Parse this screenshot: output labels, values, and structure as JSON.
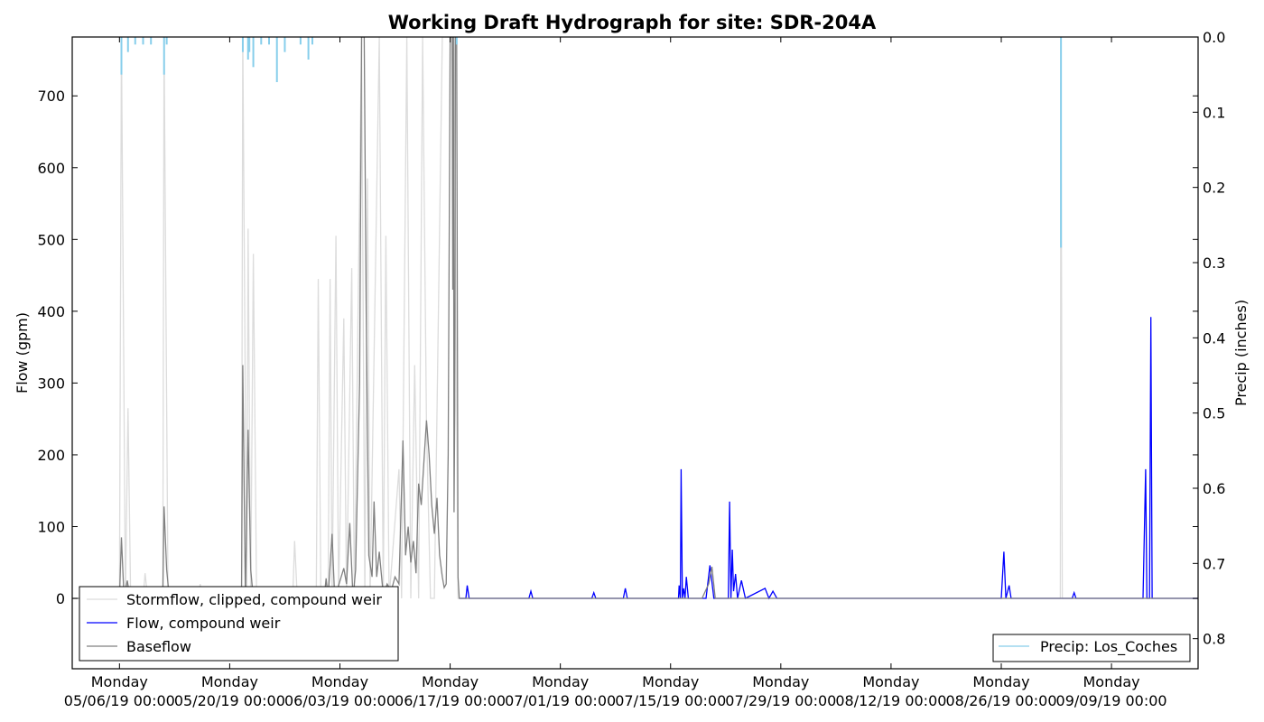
{
  "chart_data": {
    "type": "line",
    "title": "Working Draft Hydrograph for site: SDR-204A",
    "ylabel": "Flow (gpm)",
    "y2label": "Precip (inches)",
    "ylim": [
      -98,
      782
    ],
    "y2lim": [
      0.84,
      0.0
    ],
    "y2_inverted": true,
    "yticks": [
      0,
      100,
      200,
      300,
      400,
      500,
      600,
      700
    ],
    "y2ticks": [
      0.0,
      0.1,
      0.2,
      0.3,
      0.4,
      0.5,
      0.6,
      0.7,
      0.8
    ],
    "xlim": [
      "2019-04-30",
      "2019-09-20"
    ],
    "xticks": [
      {
        "date": "2019-05-06",
        "day": "Monday",
        "label": "05/06/19 00:00"
      },
      {
        "date": "2019-05-20",
        "day": "Monday",
        "label": "05/20/19 00:00"
      },
      {
        "date": "2019-06-03",
        "day": "Monday",
        "label": "06/03/19 00:00"
      },
      {
        "date": "2019-06-17",
        "day": "Monday",
        "label": "06/17/19 00:00"
      },
      {
        "date": "2019-07-01",
        "day": "Monday",
        "label": "07/01/19 00:00"
      },
      {
        "date": "2019-07-15",
        "day": "Monday",
        "label": "07/15/19 00:00"
      },
      {
        "date": "2019-07-29",
        "day": "Monday",
        "label": "07/29/19 00:00"
      },
      {
        "date": "2019-08-12",
        "day": "Monday",
        "label": "08/12/19 00:00"
      },
      {
        "date": "2019-08-26",
        "day": "Monday",
        "label": "08/26/19 00:00"
      },
      {
        "date": "2019-09-09",
        "day": "Monday",
        "label": "09/09/19 00:00"
      }
    ],
    "grid": false,
    "legend_placement": "lower-left",
    "legend2_placement": "lower-right",
    "series": [
      {
        "name": "Stormflow, clipped, compound weir",
        "color": "#dcdcdc",
        "axis": "left",
        "points": [
          [
            "2019-04-30",
            0
          ],
          [
            "2019-05-06",
            0
          ],
          [
            "2019-05-06T06:00",
            782
          ],
          [
            "2019-05-06T18:00",
            0
          ],
          [
            "2019-05-07T02:00",
            265
          ],
          [
            "2019-05-07T10:00",
            0
          ],
          [
            "2019-05-09",
            0
          ],
          [
            "2019-05-09T06:00",
            35
          ],
          [
            "2019-05-09T14:00",
            0
          ],
          [
            "2019-05-11T12:00",
            0
          ],
          [
            "2019-05-11T16:00",
            782
          ],
          [
            "2019-05-12T04:00",
            0
          ],
          [
            "2019-05-16",
            0
          ],
          [
            "2019-05-16T06:00",
            20
          ],
          [
            "2019-05-16T14:00",
            0
          ],
          [
            "2019-05-21T12:00",
            0
          ],
          [
            "2019-05-21T16:00",
            782
          ],
          [
            "2019-05-22T04:00",
            0
          ],
          [
            "2019-05-22T08:00",
            515
          ],
          [
            "2019-05-22T16:00",
            0
          ],
          [
            "2019-05-23",
            480
          ],
          [
            "2019-05-23T10:00",
            0
          ],
          [
            "2019-05-28",
            0
          ],
          [
            "2019-05-28T06:00",
            80
          ],
          [
            "2019-05-28T14:00",
            0
          ],
          [
            "2019-05-31",
            0
          ],
          [
            "2019-05-31T06:00",
            445
          ],
          [
            "2019-05-31T14:00",
            0
          ],
          [
            "2019-06-01T12:00",
            0
          ],
          [
            "2019-06-01T18:00",
            445
          ],
          [
            "2019-06-02",
            0
          ],
          [
            "2019-06-02T12:00",
            505
          ],
          [
            "2019-06-02T20:00",
            0
          ],
          [
            "2019-06-03T12:00",
            390
          ],
          [
            "2019-06-03T20:00",
            0
          ],
          [
            "2019-06-04T12:00",
            460
          ],
          [
            "2019-06-04T20:00",
            0
          ],
          [
            "2019-06-05T18:00",
            782
          ],
          [
            "2019-06-06T04:00",
            0
          ],
          [
            "2019-06-06T12:00",
            585
          ],
          [
            "2019-06-06T20:00",
            0
          ],
          [
            "2019-06-08",
            782
          ],
          [
            "2019-06-08T12:00",
            0
          ],
          [
            "2019-06-08T20:00",
            505
          ],
          [
            "2019-06-09T06:00",
            0
          ],
          [
            "2019-06-10T12:00",
            180
          ],
          [
            "2019-06-10T20:00",
            0
          ],
          [
            "2019-06-11T12:00",
            782
          ],
          [
            "2019-06-12",
            0
          ],
          [
            "2019-06-12T12:00",
            325
          ],
          [
            "2019-06-13",
            0
          ],
          [
            "2019-06-13T12:00",
            782
          ],
          [
            "2019-06-14",
            240
          ],
          [
            "2019-06-14T12:00",
            0
          ],
          [
            "2019-06-15",
            0
          ],
          [
            "2019-06-16",
            782
          ],
          [
            "2019-06-16T12:00",
            782
          ],
          [
            "2019-06-17",
            782
          ],
          [
            "2019-06-17T12:00",
            782
          ],
          [
            "2019-06-18",
            0
          ],
          [
            "2019-09-02T12:00",
            0
          ],
          [
            "2019-09-02T14:00",
            782
          ],
          [
            "2019-09-02T18:00",
            0
          ],
          [
            "2019-09-20",
            0
          ]
        ]
      },
      {
        "name": "Flow, compound weir",
        "color": "#0000ff",
        "axis": "left",
        "points": [
          [
            "2019-06-18T06:00",
            0
          ],
          [
            "2019-06-19",
            0
          ],
          [
            "2019-06-19T04:00",
            18
          ],
          [
            "2019-06-19T10:00",
            0
          ],
          [
            "2019-06-27",
            0
          ],
          [
            "2019-06-27T06:00",
            10
          ],
          [
            "2019-06-27T12:00",
            0
          ],
          [
            "2019-07-05",
            0
          ],
          [
            "2019-07-05T06:00",
            8
          ],
          [
            "2019-07-05T12:00",
            0
          ],
          [
            "2019-07-09",
            0
          ],
          [
            "2019-07-09T06:00",
            14
          ],
          [
            "2019-07-09T12:00",
            0
          ],
          [
            "2019-07-16",
            0
          ],
          [
            "2019-07-16T02:00",
            18
          ],
          [
            "2019-07-16T06:00",
            0
          ],
          [
            "2019-07-16T08:00",
            180
          ],
          [
            "2019-07-16T12:00",
            0
          ],
          [
            "2019-07-16T16:00",
            14
          ],
          [
            "2019-07-16T20:00",
            0
          ],
          [
            "2019-07-17",
            30
          ],
          [
            "2019-07-17T06:00",
            0
          ],
          [
            "2019-07-19T12:00",
            0
          ],
          [
            "2019-07-20",
            46
          ],
          [
            "2019-07-20T12:00",
            0
          ],
          [
            "2019-07-22T08:00",
            0
          ],
          [
            "2019-07-22T12:00",
            135
          ],
          [
            "2019-07-22T16:00",
            0
          ],
          [
            "2019-07-22T20:00",
            68
          ],
          [
            "2019-07-23",
            10
          ],
          [
            "2019-07-23T06:00",
            34
          ],
          [
            "2019-07-23T12:00",
            0
          ],
          [
            "2019-07-24",
            25
          ],
          [
            "2019-07-24T12:00",
            0
          ],
          [
            "2019-07-27",
            14
          ],
          [
            "2019-07-27T12:00",
            0
          ],
          [
            "2019-07-28",
            10
          ],
          [
            "2019-07-28T12:00",
            0
          ],
          [
            "2019-08-26",
            0
          ],
          [
            "2019-08-26T08:00",
            65
          ],
          [
            "2019-08-26T14:00",
            0
          ],
          [
            "2019-08-27",
            18
          ],
          [
            "2019-08-27T06:00",
            0
          ],
          [
            "2019-09-04",
            0
          ],
          [
            "2019-09-04T06:00",
            8
          ],
          [
            "2019-09-04T12:00",
            0
          ],
          [
            "2019-09-13",
            0
          ],
          [
            "2019-09-13T08:00",
            180
          ],
          [
            "2019-09-13T12:00",
            0
          ],
          [
            "2019-09-13T20:00",
            0
          ],
          [
            "2019-09-14",
            392
          ],
          [
            "2019-09-14T04:00",
            0
          ],
          [
            "2019-09-20",
            0
          ]
        ]
      },
      {
        "name": "Baseflow",
        "color": "#808080",
        "axis": "left",
        "points": [
          [
            "2019-04-30",
            0
          ],
          [
            "2019-05-06",
            0
          ],
          [
            "2019-05-06T06:00",
            85
          ],
          [
            "2019-05-06T14:00",
            0
          ],
          [
            "2019-05-07",
            25
          ],
          [
            "2019-05-07T08:00",
            0
          ],
          [
            "2019-05-11T12:00",
            0
          ],
          [
            "2019-05-11T16:00",
            128
          ],
          [
            "2019-05-12",
            40
          ],
          [
            "2019-05-12T08:00",
            0
          ],
          [
            "2019-05-21T12:00",
            0
          ],
          [
            "2019-05-21T16:00",
            325
          ],
          [
            "2019-05-22",
            0
          ],
          [
            "2019-05-22T08:00",
            235
          ],
          [
            "2019-05-22T16:00",
            40
          ],
          [
            "2019-05-23",
            0
          ],
          [
            "2019-06-01",
            0
          ],
          [
            "2019-06-01T06:00",
            28
          ],
          [
            "2019-06-01T12:00",
            0
          ],
          [
            "2019-06-02",
            90
          ],
          [
            "2019-06-02T08:00",
            0
          ],
          [
            "2019-06-03T12:00",
            42
          ],
          [
            "2019-06-03T20:00",
            20
          ],
          [
            "2019-06-04T06:00",
            105
          ],
          [
            "2019-06-04T16:00",
            0
          ],
          [
            "2019-06-05",
            40
          ],
          [
            "2019-06-05T12:00",
            300
          ],
          [
            "2019-06-05T18:00",
            782
          ],
          [
            "2019-06-06T02:00",
            782
          ],
          [
            "2019-06-06T08:00",
            400
          ],
          [
            "2019-06-06T16:00",
            60
          ],
          [
            "2019-06-07T02:00",
            30
          ],
          [
            "2019-06-07T08:00",
            135
          ],
          [
            "2019-06-07T16:00",
            30
          ],
          [
            "2019-06-08",
            65
          ],
          [
            "2019-06-08T12:00",
            5
          ],
          [
            "2019-06-09",
            20
          ],
          [
            "2019-06-09T12:00",
            10
          ],
          [
            "2019-06-10",
            30
          ],
          [
            "2019-06-10T12:00",
            20
          ],
          [
            "2019-06-11",
            220
          ],
          [
            "2019-06-11T08:00",
            60
          ],
          [
            "2019-06-11T16:00",
            100
          ],
          [
            "2019-06-12",
            50
          ],
          [
            "2019-06-12T08:00",
            80
          ],
          [
            "2019-06-12T16:00",
            35
          ],
          [
            "2019-06-13",
            160
          ],
          [
            "2019-06-13T08:00",
            130
          ],
          [
            "2019-06-13T16:00",
            190
          ],
          [
            "2019-06-14",
            248
          ],
          [
            "2019-06-14T08:00",
            200
          ],
          [
            "2019-06-14T16:00",
            130
          ],
          [
            "2019-06-15",
            90
          ],
          [
            "2019-06-15T08:00",
            140
          ],
          [
            "2019-06-15T16:00",
            60
          ],
          [
            "2019-06-16",
            30
          ],
          [
            "2019-06-16T06:00",
            15
          ],
          [
            "2019-06-16T12:00",
            20
          ],
          [
            "2019-06-16T18:00",
            200
          ],
          [
            "2019-06-17",
            782
          ],
          [
            "2019-06-17T06:00",
            782
          ],
          [
            "2019-06-17T08:00",
            430
          ],
          [
            "2019-06-17T10:00",
            782
          ],
          [
            "2019-06-17T12:00",
            120
          ],
          [
            "2019-06-17T14:00",
            265
          ],
          [
            "2019-06-17T16:00",
            782
          ],
          [
            "2019-06-17T20:00",
            782
          ],
          [
            "2019-06-18",
            30
          ],
          [
            "2019-06-18T04:00",
            0
          ],
          [
            "2019-07-19",
            0
          ],
          [
            "2019-07-19T20:00",
            20
          ],
          [
            "2019-07-20T06:00",
            44
          ],
          [
            "2019-07-20T16:00",
            0
          ],
          [
            "2019-09-20",
            0
          ]
        ]
      },
      {
        "name": "Precip: Los_Coches",
        "color": "#87ceeb",
        "axis": "right",
        "points": [
          [
            "2019-05-06T06:00",
            0.05
          ],
          [
            "2019-05-07T02:00",
            0.02
          ],
          [
            "2019-05-08",
            0.01
          ],
          [
            "2019-05-09",
            0.01
          ],
          [
            "2019-05-10",
            0.01
          ],
          [
            "2019-05-11T16:00",
            0.05
          ],
          [
            "2019-05-12",
            0.01
          ],
          [
            "2019-05-21T16:00",
            0.02
          ],
          [
            "2019-05-22T08:00",
            0.03
          ],
          [
            "2019-05-22T12:00",
            0.02
          ],
          [
            "2019-05-23",
            0.04
          ],
          [
            "2019-05-24",
            0.01
          ],
          [
            "2019-05-25",
            0.01
          ],
          [
            "2019-05-26",
            0.06
          ],
          [
            "2019-05-27",
            0.02
          ],
          [
            "2019-05-29",
            0.01
          ],
          [
            "2019-05-30",
            0.03
          ],
          [
            "2019-05-30T12:00",
            0.01
          ],
          [
            "2019-06-17T20:00",
            0.01
          ],
          [
            "2019-09-02T14:00",
            0.28
          ]
        ]
      }
    ]
  }
}
